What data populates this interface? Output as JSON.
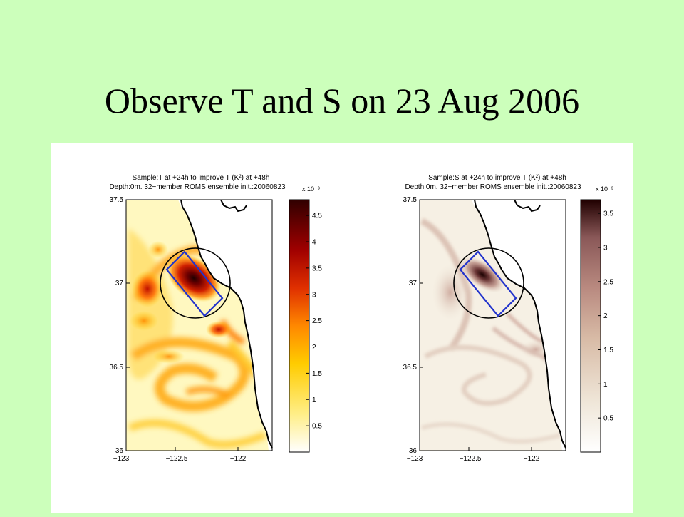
{
  "slide": {
    "title": "Observe T and S on 23 Aug 2006"
  },
  "chart_data": [
    {
      "type": "heatmap",
      "title": "Sample:T at +24h to improve T (K²) at +48h",
      "subtitle": "Depth:0m. 32−member ROMS ensemble init.:20060823",
      "exponent_label": "x 10⁻³",
      "xticks": [
        "−123",
        "−122.5",
        "−122"
      ],
      "yticks": [
        "37.5",
        "37",
        "36.5",
        "36"
      ],
      "xlim": [
        -123,
        -121.85
      ],
      "ylim": [
        36,
        37.5
      ],
      "colorbar": {
        "ticks": [
          "0.5",
          "1",
          "1.5",
          "2",
          "2.5",
          "3",
          "3.5",
          "4",
          "4.5"
        ],
        "range": [
          0,
          4.8
        ],
        "colormap": "hot-reversed",
        "colors": [
          "#ffffff",
          "#ffee88",
          "#ffcc00",
          "#ff8800",
          "#e03000",
          "#a00000",
          "#300000"
        ]
      },
      "features": {
        "max_value_approx": 4.8,
        "max_location": {
          "lon": -122.45,
          "lat": 37.0
        },
        "sampling_box_color": "#2233cc",
        "circle_color": "#000000"
      }
    },
    {
      "type": "heatmap",
      "title": "Sample:S at +24h to improve T (K²) at +48h",
      "subtitle": "Depth:0m. 32−member ROMS ensemble init.:20060823",
      "exponent_label": "x 10⁻³",
      "xticks": [
        "−123",
        "−122.5",
        "−122"
      ],
      "yticks": [
        "37.5",
        "37",
        "36.5",
        "36"
      ],
      "xlim": [
        -123,
        -121.85
      ],
      "ylim": [
        36,
        37.5
      ],
      "colorbar": {
        "ticks": [
          "0.5",
          "1",
          "1.5",
          "2",
          "2.5",
          "3",
          "3.5"
        ],
        "range": [
          0,
          3.7
        ],
        "colormap": "pink-reversed",
        "colors": [
          "#ffffff",
          "#efe6d8",
          "#d8bba6",
          "#b98a80",
          "#8a5858",
          "#200000"
        ]
      },
      "features": {
        "max_value_approx": 3.7,
        "max_location": {
          "lon": -122.5,
          "lat": 37.02
        },
        "sampling_box_color": "#2233cc",
        "circle_color": "#000000"
      }
    }
  ]
}
